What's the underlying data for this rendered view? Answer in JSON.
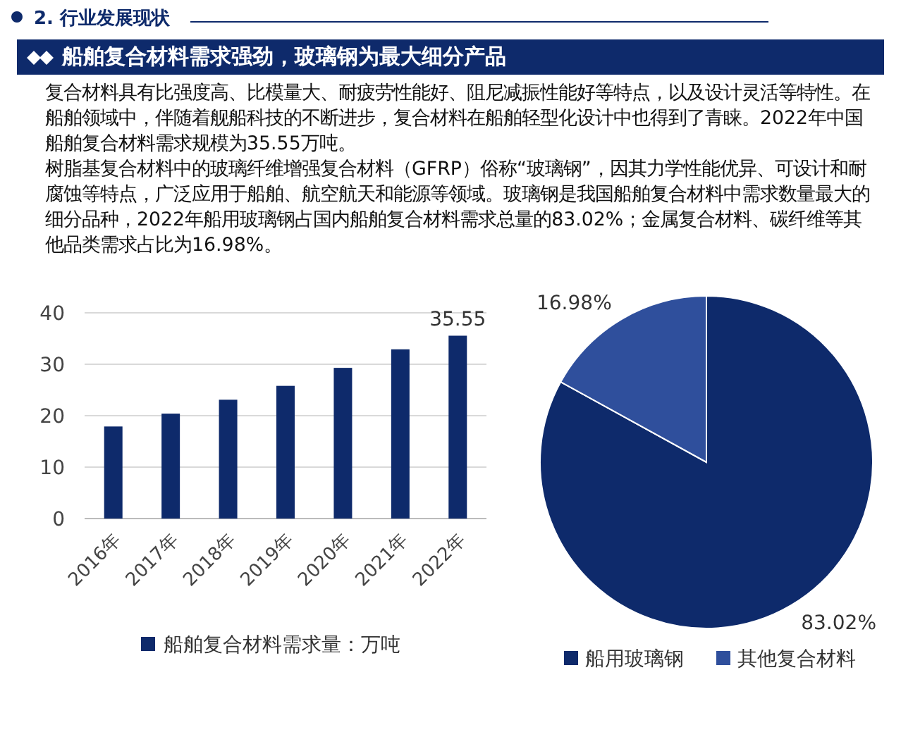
{
  "chart_data": [
    {
      "type": "bar",
      "title": "船舶复合材料需求强劲，玻璃钢为最大细分产品",
      "annotations": [
        "2. 行业发展现状",
        "复合材料具有比强度高、比模量大、耐疲劳性能好、阻尼减振性能好等特点，以及设计灵活等特性。在船舶领域中，伴随着舰船科技的不断进步，复合材料在船舶轻型化设计中也得到了青睐。2022年中国船舶复合材料需求规模为35.55万吨。",
        "树脂基复合材料中的玻璃纤维增强复合材料（GFRP）俗称“玻璃钢”，因其力学性能优异、可设计和耐腐蚀等特点，广泛应用于船舶、航空航天和能源等领域。玻璃钢是我国船舶复合材料中需求数量最大的细分品种，2022年船用玻璃钢占国内船舶复合材料需求总量的83.02%；金属复合材料、碳纤维等其他品类需求占比为16.98%。"
      ],
      "categories": [
        "2016年",
        "2017年",
        "2018年",
        "2019年",
        "2020年",
        "2021年",
        "2022年"
      ],
      "series": [
        {
          "name": "船舶复合材料需求量：万吨",
          "color": "#0e2a6b",
          "values": [
            17.9,
            20.4,
            23.1,
            25.8,
            29.3,
            32.9,
            35.55
          ],
          "value_labels": [
            null,
            null,
            null,
            null,
            null,
            null,
            "35.55"
          ]
        }
      ],
      "ylim": [
        0,
        40
      ],
      "yticks": [
        0,
        10,
        20,
        30,
        40
      ],
      "grid": "y",
      "legend": "bottom"
    },
    {
      "type": "pie",
      "categories": [
        "船用玻璃钢",
        "其他复合材料"
      ],
      "values": [
        83.02,
        16.98
      ],
      "colors": [
        "#0e2a6b",
        "#2f4f9c"
      ],
      "value_labels": [
        "83.02%",
        "16.98%"
      ],
      "legend": "bottom"
    }
  ]
}
